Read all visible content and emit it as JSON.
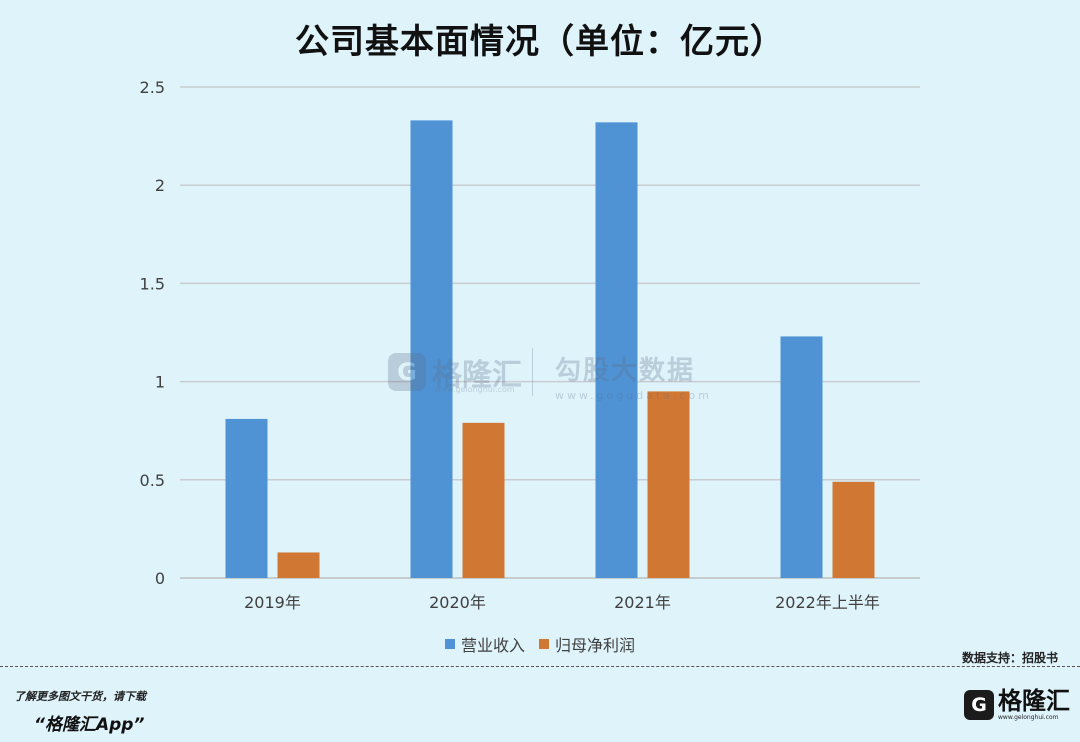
{
  "chart_data": {
    "type": "bar",
    "title": "公司基本面情况（单位：亿元）",
    "categories": [
      "2019年",
      "2020年",
      "2021年",
      "2022年上半年"
    ],
    "series": [
      {
        "name": "营业收入",
        "color": "#4f93d4",
        "values": [
          0.81,
          2.33,
          2.32,
          1.23
        ]
      },
      {
        "name": "归母净利润",
        "color": "#cf7733",
        "values": [
          0.13,
          0.79,
          0.95,
          0.49
        ]
      }
    ],
    "ylim": [
      0,
      2.5
    ],
    "yticks": [
      "0",
      "0.5",
      "1",
      "1.5",
      "2",
      "2.5"
    ],
    "grid": true,
    "legend_position": "bottom"
  },
  "watermark": {
    "logo_glyph": "G",
    "brand": "格隆汇",
    "brand_url": "www.gelonghui.com",
    "data_brand": "勾股大数据",
    "data_url": "www.gogudata.com"
  },
  "footer": {
    "source": "数据支持：招股书",
    "promo_line1": "了解更多图文干货，请下载",
    "promo_line2": "“格隆汇App”",
    "logo_glyph": "G",
    "logo_text": "格隆汇",
    "logo_url": "www.gelonghui.com"
  },
  "colors": {
    "background": "#dff3fb",
    "grid": "#c8ccd0",
    "axis": "#bfbfbf"
  }
}
